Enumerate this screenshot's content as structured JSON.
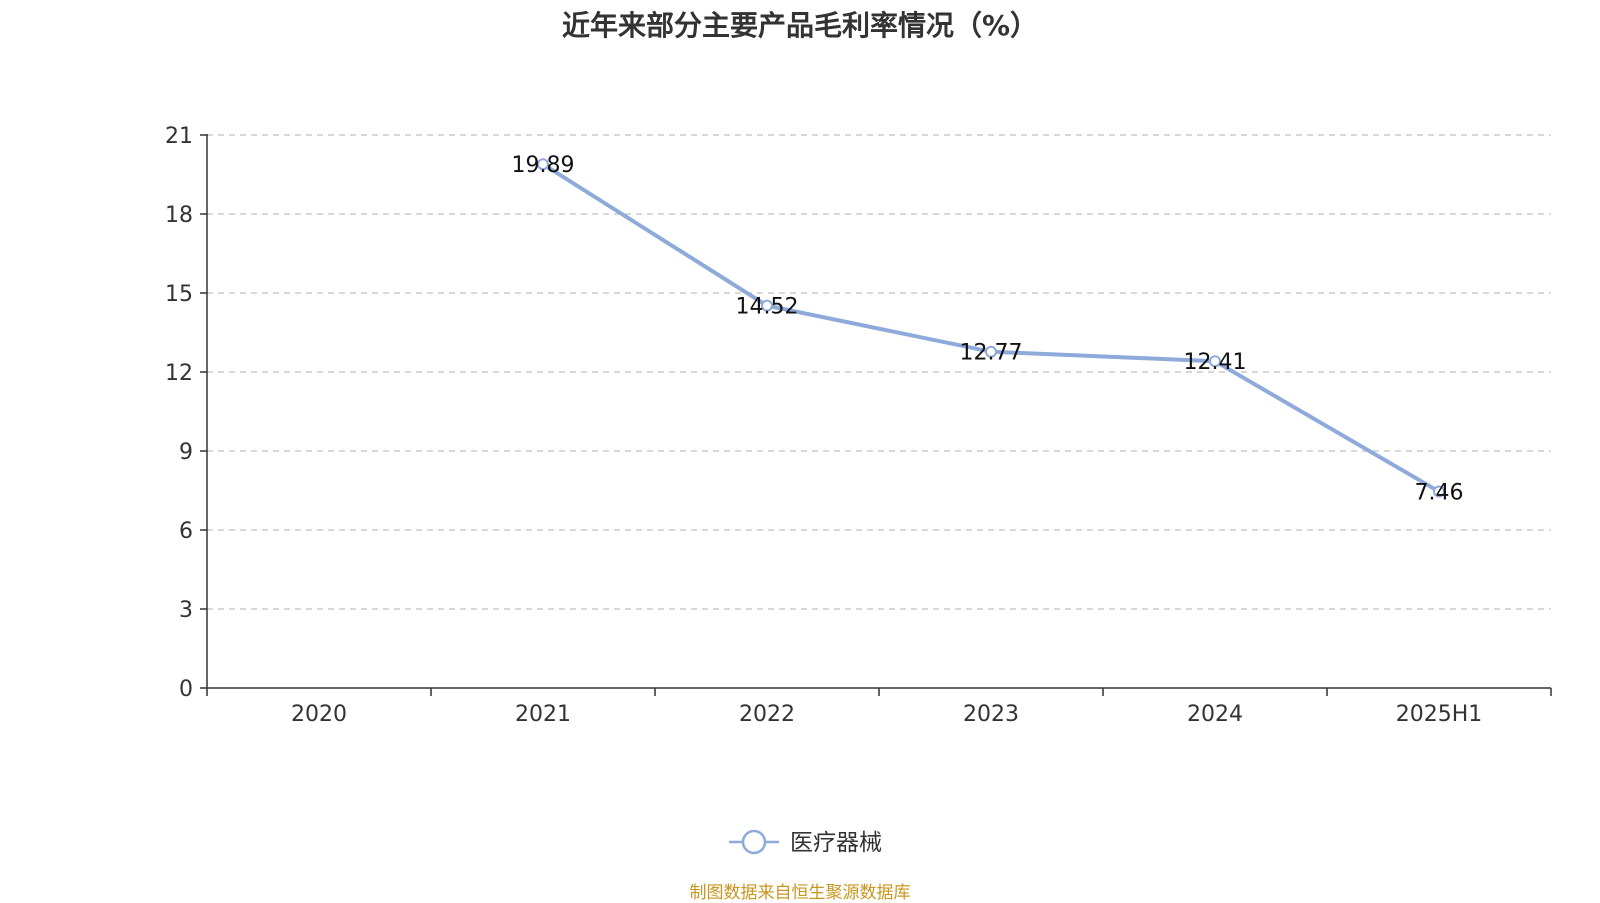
{
  "chart_data": {
    "type": "line",
    "title": "近年来部分主要产品毛利率情况（%）",
    "categories": [
      "2020",
      "2021",
      "2022",
      "2023",
      "2024",
      "2025H1"
    ],
    "series": [
      {
        "name": "医疗器械",
        "values": [
          null,
          19.89,
          14.52,
          12.77,
          12.41,
          7.46
        ],
        "color": "#8eaadb"
      }
    ],
    "ylim": [
      0,
      21
    ],
    "yticks": [
      0,
      3,
      6,
      9,
      12,
      15,
      18,
      21
    ],
    "grid": true,
    "legend": "bottom-center",
    "source": "制图数据来自恒生聚源数据库"
  }
}
